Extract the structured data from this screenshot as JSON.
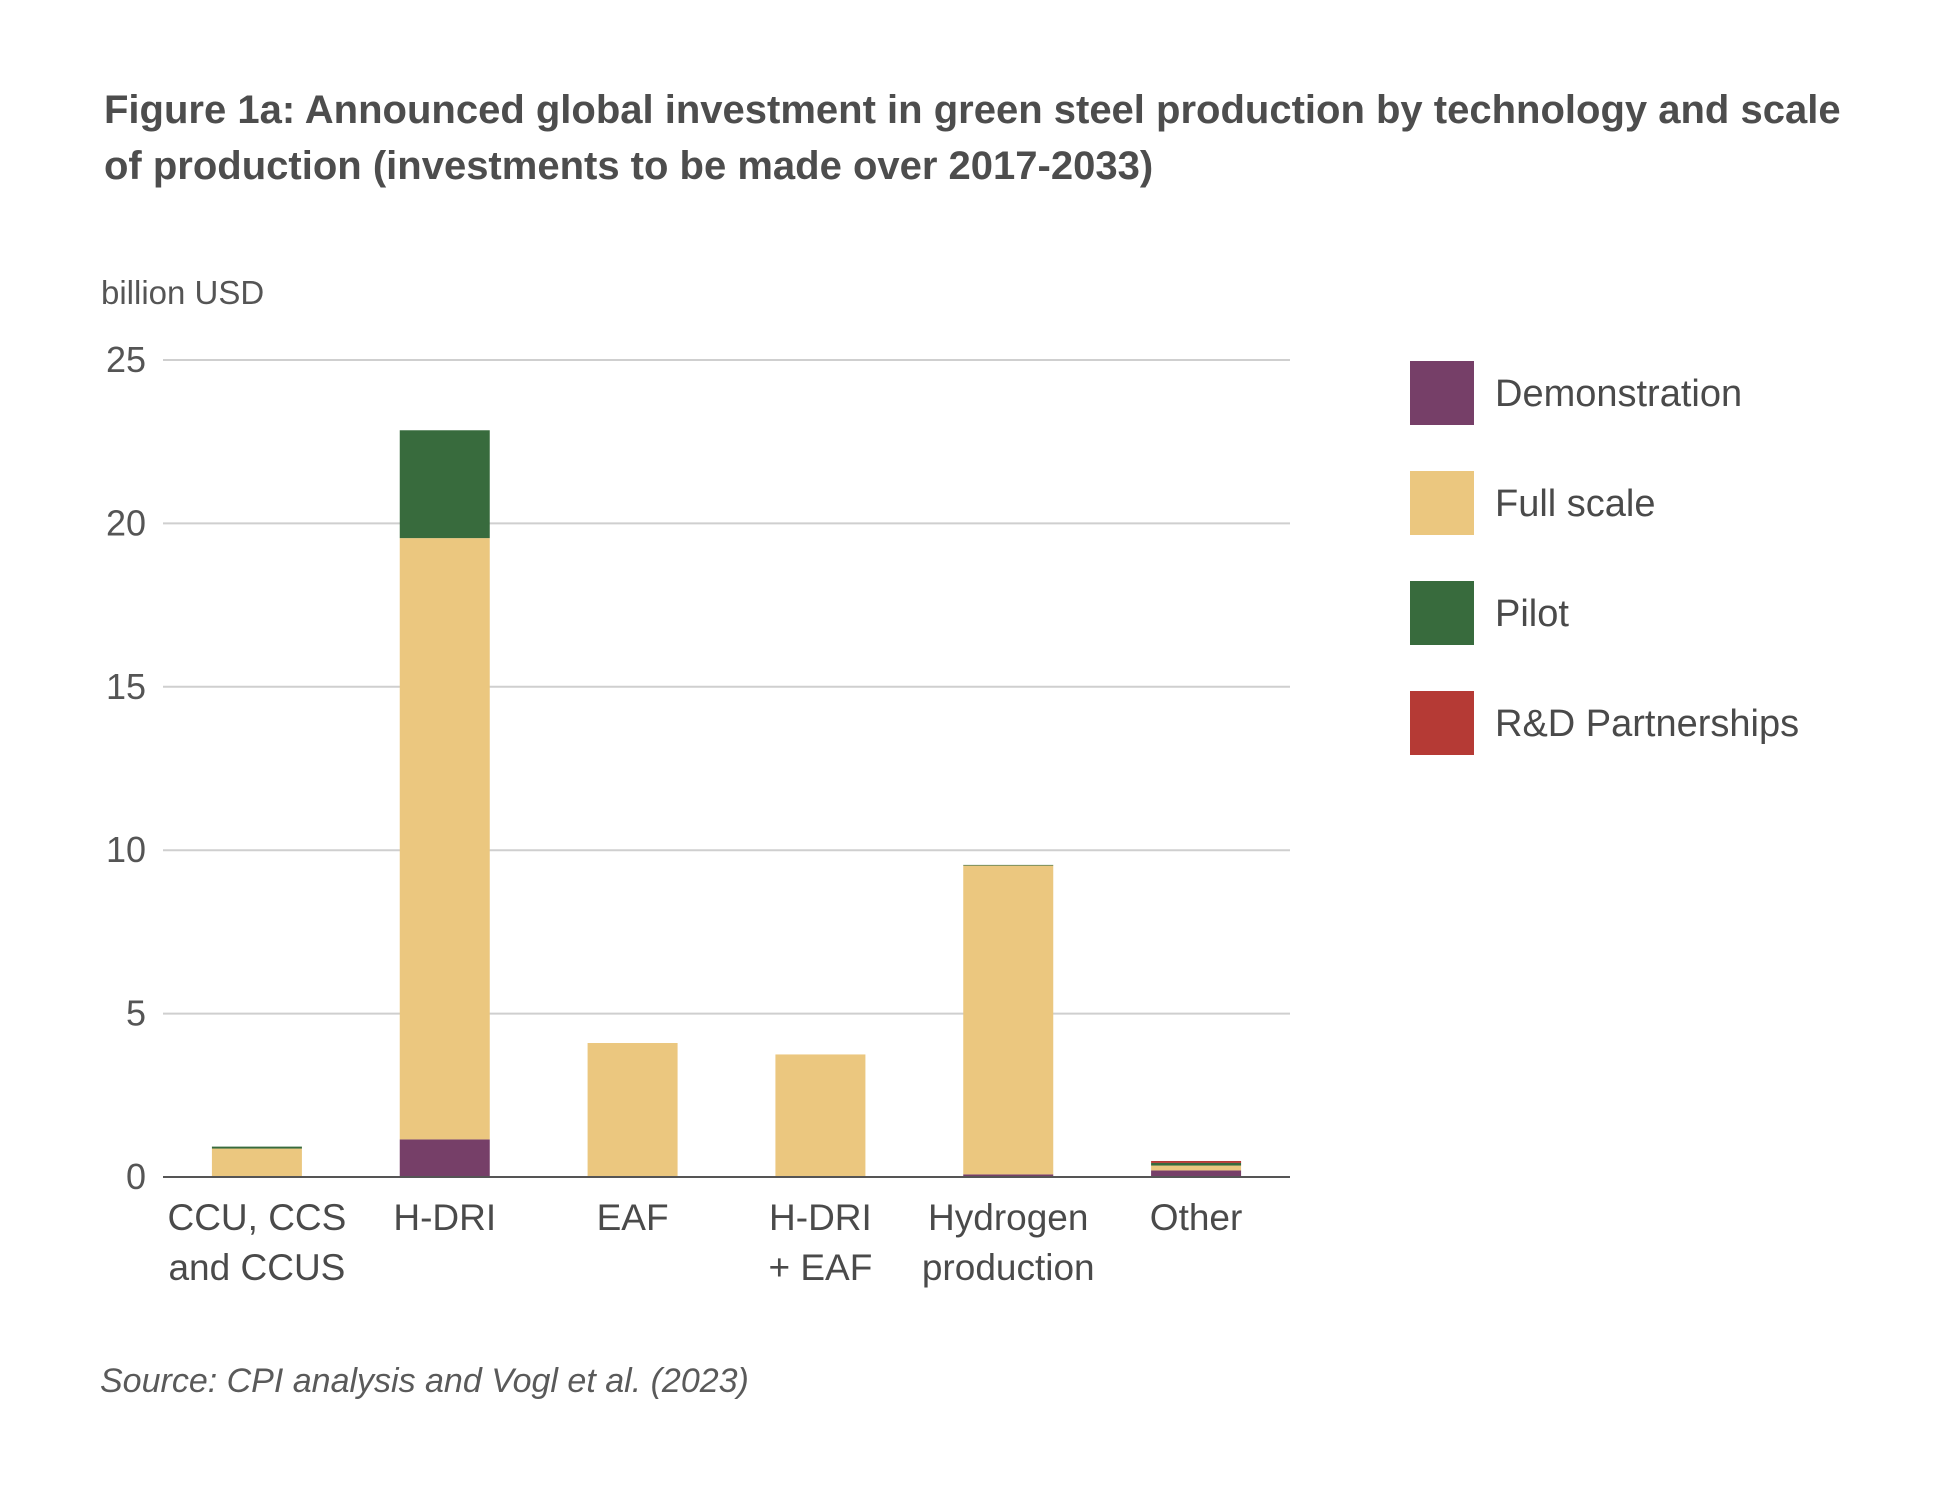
{
  "title_lines": [
    "Figure 1a: Announced global investment in green steel production by technology and scale",
    "of production (investments to be made over 2017-2033)"
  ],
  "source": "Source: CPI analysis and Vogl et al. (2023)",
  "chart_data": {
    "type": "bar",
    "stacked": true,
    "ylabel": "billion USD",
    "ylim": [
      0,
      25
    ],
    "yticks": [
      0,
      5,
      10,
      15,
      20,
      25
    ],
    "grid": true,
    "legend_position": "right",
    "categories": [
      [
        "CCU, CCS",
        "and CCUS"
      ],
      [
        "H-DRI"
      ],
      [
        "EAF"
      ],
      [
        "H-DRI",
        "+ EAF"
      ],
      [
        "Hydrogen",
        "production"
      ],
      [
        "Other"
      ]
    ],
    "series": [
      {
        "name": "Demonstration",
        "color": "#763f68",
        "values": [
          0,
          1.15,
          0,
          0,
          0.08,
          0.2
        ]
      },
      {
        "name": "Full scale",
        "color": "#ebc77f",
        "values": [
          0.87,
          18.4,
          4.1,
          3.75,
          9.45,
          0.15
        ]
      },
      {
        "name": "Pilot",
        "color": "#386b3d",
        "values": [
          0.06,
          3.3,
          0,
          0,
          0.02,
          0.08
        ]
      },
      {
        "name": "R&D Partnerships",
        "color": "#b53a35",
        "values": [
          0,
          0,
          0,
          0,
          0,
          0.06
        ]
      }
    ]
  }
}
